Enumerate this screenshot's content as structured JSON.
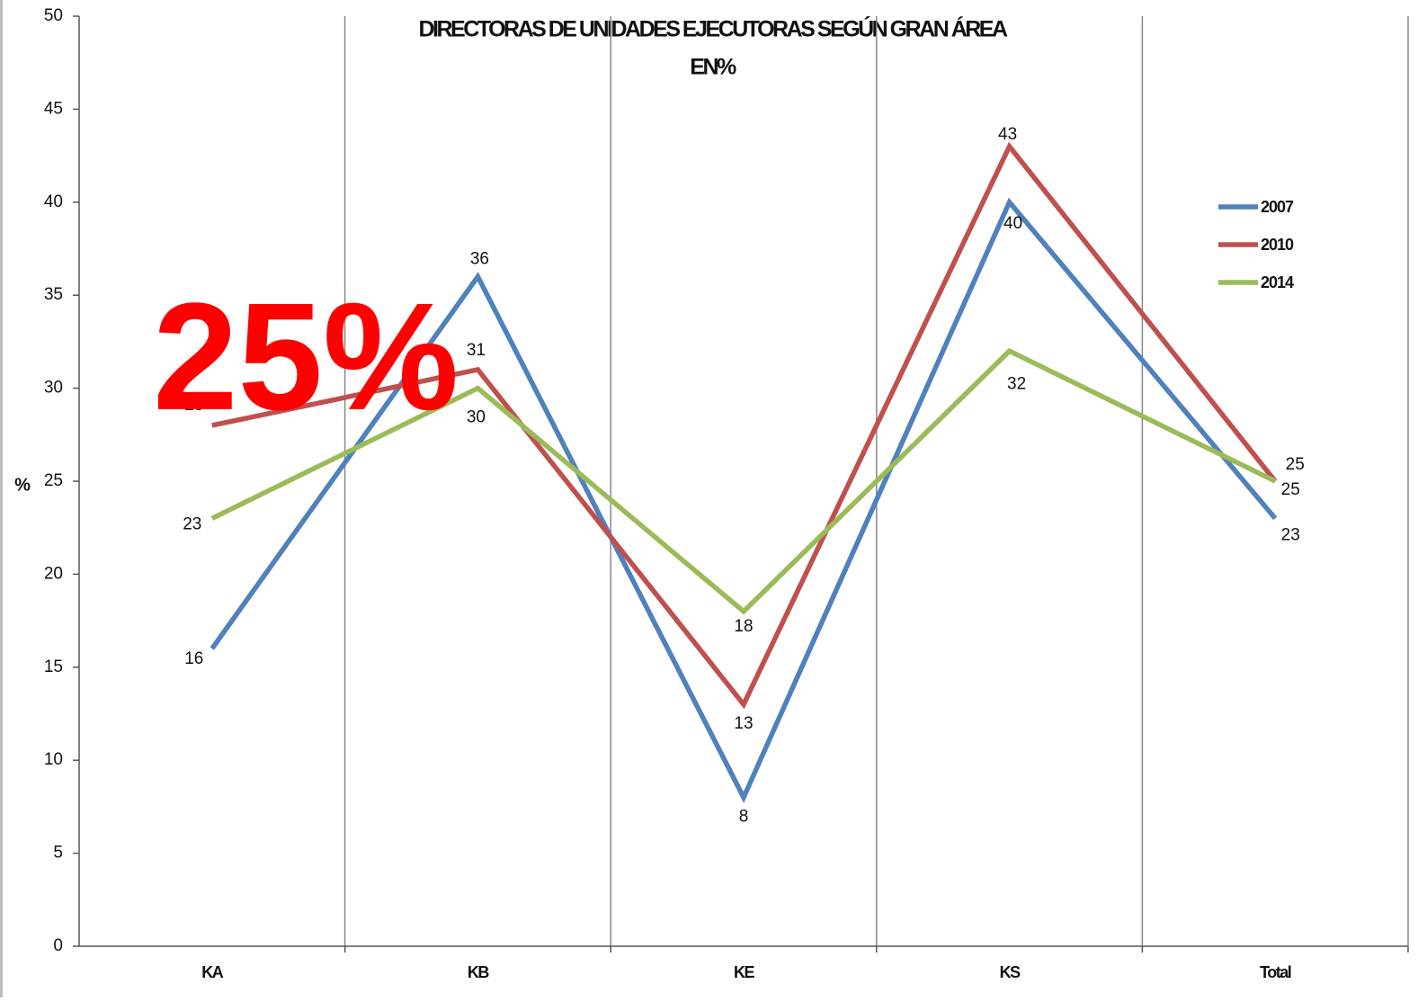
{
  "chart_data": {
    "type": "line",
    "title": "DIRECTORAS DE UNIDADES EJECUTORAS SEGÚN GRAN ÁREA",
    "subtitle": "EN%",
    "y_label": "%",
    "annotation": "25%",
    "categories": [
      "KA",
      "KB",
      "KE",
      "KS",
      "Total"
    ],
    "series": [
      {
        "name": "2007",
        "color": "#4f81bd",
        "values": [
          16,
          36,
          8,
          40,
          23
        ]
      },
      {
        "name": "2010",
        "color": "#c0504d",
        "values": [
          28,
          31,
          13,
          43,
          25
        ]
      },
      {
        "name": "2014",
        "color": "#9bbb59",
        "values": [
          23,
          30,
          18,
          32,
          25
        ]
      }
    ],
    "ylim": [
      0,
      50
    ],
    "yticks": [
      0,
      5,
      10,
      15,
      20,
      25,
      30,
      35,
      40,
      45,
      50
    ],
    "grid": true,
    "legend": "upper right"
  }
}
